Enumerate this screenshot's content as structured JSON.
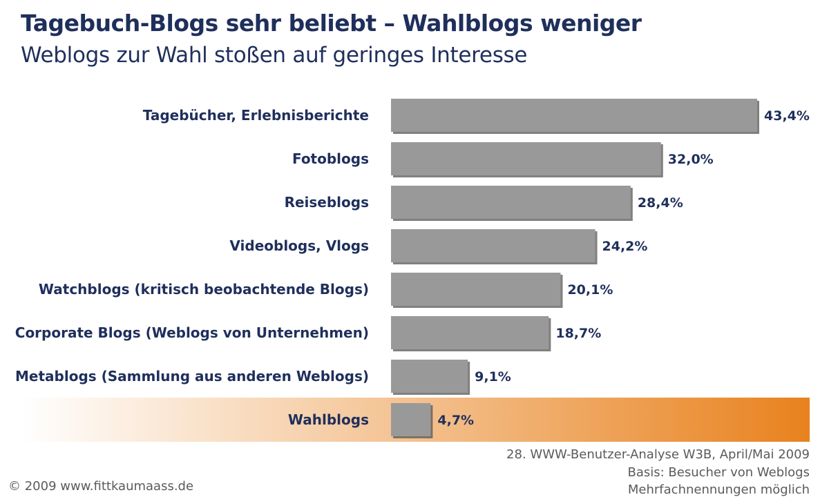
{
  "header": {
    "title": "Tagebuch-Blogs sehr beliebt – Wahlblogs weniger",
    "subtitle": "Weblogs zur Wahl stoßen auf geringes Interesse"
  },
  "chart_data": {
    "type": "bar",
    "orientation": "horizontal",
    "title": "Tagebuch-Blogs sehr beliebt – Wahlblogs weniger",
    "subtitle": "Weblogs zur Wahl stoßen auf geringes Interesse",
    "categories": [
      "Tagebücher, Erlebnisberichte",
      "Fotoblogs",
      "Reiseblogs",
      "Videoblogs, Vlogs",
      "Watchblogs (kritisch beobachtende Blogs)",
      "Corporate Blogs (Weblogs von Unternehmen)",
      "Metablogs (Sammlung aus anderen Weblogs)",
      "Wahlblogs"
    ],
    "values": [
      43.4,
      32.0,
      28.4,
      24.2,
      20.1,
      18.7,
      9.1,
      4.7
    ],
    "value_labels": [
      "43,4%",
      "32,0%",
      "28,4%",
      "24,2%",
      "20,1%",
      "18,7%",
      "9,1%",
      "4,7%"
    ],
    "unit": "%",
    "highlighted_category": "Wahlblogs",
    "xlim": [
      0,
      43.4
    ],
    "grid": false,
    "legend": "none",
    "colors": {
      "bar": "#999999",
      "bar_shadow": "#555555",
      "text": "#1f2f5c",
      "highlight_start": "#ffffff",
      "highlight_end": "#e8821e"
    }
  },
  "footer": {
    "source": "28. WWW-Benutzer-Analyse W3B, April/Mai 2009",
    "basis": "Basis: Besucher von Weblogs",
    "note": "Mehrfachnennungen möglich",
    "copyright": "© 2009 www.fittkaumaass.de"
  }
}
